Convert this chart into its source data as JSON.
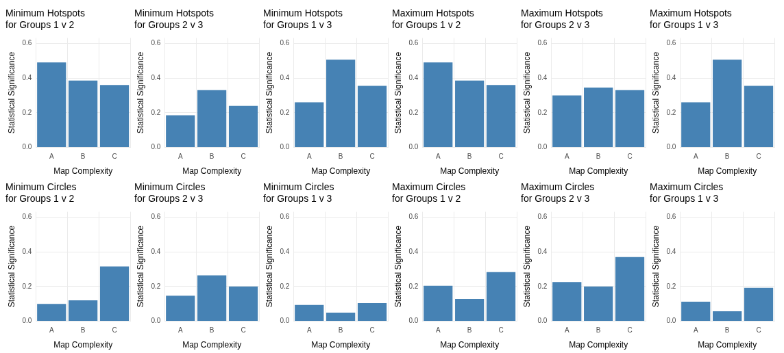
{
  "chart_data": [
    {
      "type": "bar",
      "title": "Minimum Hotspots\nfor Groups 1 v 2",
      "categories": [
        "A",
        "B",
        "C"
      ],
      "values": [
        0.49,
        0.385,
        0.36
      ],
      "color": "#4682b4",
      "xlabel": "Map Complexity",
      "ylabel": "Statistical Significance",
      "ylim": [
        0,
        0.63
      ],
      "yticks": [
        {
          "value": 0,
          "label": "0.0"
        },
        {
          "value": 0.2,
          "label": "0.2"
        },
        {
          "value": 0.4,
          "label": "0.4"
        },
        {
          "value": 0.6,
          "label": "0.6"
        }
      ],
      "grid": true
    },
    {
      "type": "bar",
      "title": "Minimum Hotspots\nfor Groups 2 v 3",
      "categories": [
        "A",
        "B",
        "C"
      ],
      "values": [
        0.185,
        0.33,
        0.24
      ],
      "color": "#4682b4",
      "xlabel": "Map Complexity",
      "ylabel": "Statistical Significance",
      "ylim": [
        0,
        0.63
      ],
      "yticks": [
        {
          "value": 0,
          "label": "0.0"
        },
        {
          "value": 0.2,
          "label": "0.2"
        },
        {
          "value": 0.4,
          "label": "0.4"
        },
        {
          "value": 0.6,
          "label": "0.6"
        }
      ],
      "grid": true
    },
    {
      "type": "bar",
      "title": "Minimum Hotspots\nfor Groups 1 v 3",
      "categories": [
        "A",
        "B",
        "C"
      ],
      "values": [
        0.26,
        0.505,
        0.355
      ],
      "color": "#4682b4",
      "xlabel": "Map Complexity",
      "ylabel": "Statistical Significance",
      "ylim": [
        0,
        0.63
      ],
      "yticks": [
        {
          "value": 0,
          "label": "0.0"
        },
        {
          "value": 0.2,
          "label": "0.2"
        },
        {
          "value": 0.4,
          "label": "0.4"
        },
        {
          "value": 0.6,
          "label": "0.6"
        }
      ],
      "grid": true
    },
    {
      "type": "bar",
      "title": "Maximum Hotspots\nfor Groups 1 v 2",
      "categories": [
        "A",
        "B",
        "C"
      ],
      "values": [
        0.49,
        0.385,
        0.36
      ],
      "color": "#4682b4",
      "xlabel": "Map Complexity",
      "ylabel": "Statistical Significance",
      "ylim": [
        0,
        0.63
      ],
      "yticks": [
        {
          "value": 0,
          "label": "0.0"
        },
        {
          "value": 0.2,
          "label": "0.2"
        },
        {
          "value": 0.4,
          "label": "0.4"
        },
        {
          "value": 0.6,
          "label": "0.6"
        }
      ],
      "grid": true
    },
    {
      "type": "bar",
      "title": "Maximum Hotspots\nfor Groups 2 v 3",
      "categories": [
        "A",
        "B",
        "C"
      ],
      "values": [
        0.3,
        0.345,
        0.33
      ],
      "color": "#4682b4",
      "xlabel": "Map Complexity",
      "ylabel": "Statistical Significance",
      "ylim": [
        0,
        0.63
      ],
      "yticks": [
        {
          "value": 0,
          "label": "0.0"
        },
        {
          "value": 0.2,
          "label": "0.2"
        },
        {
          "value": 0.4,
          "label": "0.4"
        },
        {
          "value": 0.6,
          "label": "0.6"
        }
      ],
      "grid": true
    },
    {
      "type": "bar",
      "title": "Maximum Hotspots\nfor Groups 1 v 3",
      "categories": [
        "A",
        "B",
        "C"
      ],
      "values": [
        0.26,
        0.505,
        0.355
      ],
      "color": "#4682b4",
      "xlabel": "Map Complexity",
      "ylabel": "Statistical Significance",
      "ylim": [
        0,
        0.63
      ],
      "yticks": [
        {
          "value": 0,
          "label": "0.0"
        },
        {
          "value": 0.2,
          "label": "0.2"
        },
        {
          "value": 0.4,
          "label": "0.4"
        },
        {
          "value": 0.6,
          "label": "0.6"
        }
      ],
      "grid": true
    },
    {
      "type": "bar",
      "title": "Minimum Circles\nfor Groups 1 v 2",
      "categories": [
        "A",
        "B",
        "C"
      ],
      "values": [
        0.1,
        0.12,
        0.315
      ],
      "color": "#4682b4",
      "xlabel": "Map Complexity",
      "ylabel": "Statistical Significance",
      "ylim": [
        0,
        0.63
      ],
      "yticks": [
        {
          "value": 0,
          "label": "0.0"
        },
        {
          "value": 0.2,
          "label": "0.2"
        },
        {
          "value": 0.4,
          "label": "0.4"
        },
        {
          "value": 0.6,
          "label": "0.6"
        }
      ],
      "grid": true
    },
    {
      "type": "bar",
      "title": "Minimum Circles\nfor Groups 2 v 3",
      "categories": [
        "A",
        "B",
        "C"
      ],
      "values": [
        0.147,
        0.264,
        0.2
      ],
      "color": "#4682b4",
      "xlabel": "Map Complexity",
      "ylabel": "Statistical Significance",
      "ylim": [
        0,
        0.63
      ],
      "yticks": [
        {
          "value": 0,
          "label": "0.0"
        },
        {
          "value": 0.2,
          "label": "0.2"
        },
        {
          "value": 0.4,
          "label": "0.4"
        },
        {
          "value": 0.6,
          "label": "0.6"
        }
      ],
      "grid": true
    },
    {
      "type": "bar",
      "title": "Minimum Circles\nfor Groups 1 v 3",
      "categories": [
        "A",
        "B",
        "C"
      ],
      "values": [
        0.094,
        0.05,
        0.105
      ],
      "color": "#4682b4",
      "xlabel": "Map Complexity",
      "ylabel": "Statistical Significance",
      "ylim": [
        0,
        0.63
      ],
      "yticks": [
        {
          "value": 0,
          "label": "0.0"
        },
        {
          "value": 0.2,
          "label": "0.2"
        },
        {
          "value": 0.4,
          "label": "0.4"
        },
        {
          "value": 0.6,
          "label": "0.6"
        }
      ],
      "grid": true
    },
    {
      "type": "bar",
      "title": "Maximum Circles\nfor Groups 1 v 2",
      "categories": [
        "A",
        "B",
        "C"
      ],
      "values": [
        0.204,
        0.128,
        0.283
      ],
      "color": "#4682b4",
      "xlabel": "Map Complexity",
      "ylabel": "Statistical Significance",
      "ylim": [
        0,
        0.63
      ],
      "yticks": [
        {
          "value": 0,
          "label": "0.0"
        },
        {
          "value": 0.2,
          "label": "0.2"
        },
        {
          "value": 0.4,
          "label": "0.4"
        },
        {
          "value": 0.6,
          "label": "0.6"
        }
      ],
      "grid": true
    },
    {
      "type": "bar",
      "title": "Maximum Circles\nfor Groups 2 v 3",
      "categories": [
        "A",
        "B",
        "C"
      ],
      "values": [
        0.226,
        0.2,
        0.37
      ],
      "color": "#4682b4",
      "xlabel": "Map Complexity",
      "ylabel": "Statistical Significance",
      "ylim": [
        0,
        0.63
      ],
      "yticks": [
        {
          "value": 0,
          "label": "0.0"
        },
        {
          "value": 0.2,
          "label": "0.2"
        },
        {
          "value": 0.4,
          "label": "0.4"
        },
        {
          "value": 0.6,
          "label": "0.6"
        }
      ],
      "grid": true
    },
    {
      "type": "bar",
      "title": "Maximum Circles\nfor Groups 1 v 3",
      "categories": [
        "A",
        "B",
        "C"
      ],
      "values": [
        0.113,
        0.057,
        0.192
      ],
      "color": "#4682b4",
      "xlabel": "Map Complexity",
      "ylabel": "Statistical Significance",
      "ylim": [
        0,
        0.63
      ],
      "yticks": [
        {
          "value": 0,
          "label": "0.0"
        },
        {
          "value": 0.2,
          "label": "0.2"
        },
        {
          "value": 0.4,
          "label": "0.4"
        },
        {
          "value": 0.6,
          "label": "0.6"
        }
      ],
      "grid": true
    }
  ]
}
